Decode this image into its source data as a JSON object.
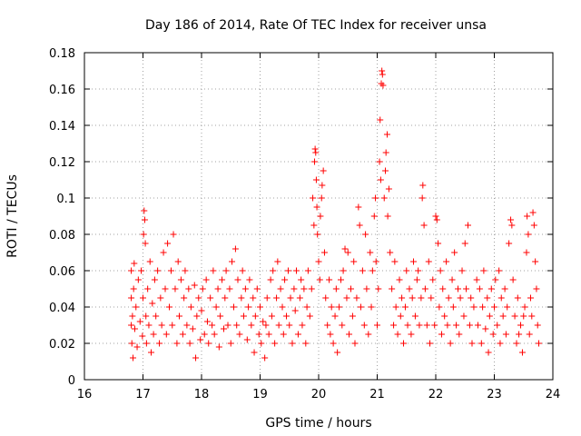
{
  "chart_data": {
    "type": "scatter",
    "title": "Day 186 of 2014, Rate Of TEC Index for receiver unsa",
    "xlabel": "GPS time / hours",
    "ylabel": "ROTI / TECUs",
    "xlim": [
      16,
      24
    ],
    "ylim": [
      0,
      0.18
    ],
    "xticks": [
      16,
      17,
      18,
      19,
      20,
      21,
      22,
      23,
      24
    ],
    "yticks": [
      0,
      0.02,
      0.04,
      0.06,
      0.08,
      0.1,
      0.12,
      0.14,
      0.16,
      0.18
    ],
    "xtick_labels": [
      "16",
      "17",
      "18",
      "19",
      "20",
      "21",
      "22",
      "23",
      "24"
    ],
    "ytick_labels": [
      "0",
      "0.02",
      "0.04",
      "0.06",
      "0.08",
      "0.1",
      "0.12",
      "0.14",
      "0.16",
      "0.18"
    ],
    "grid": true,
    "marker": "+",
    "color": "#ff0000",
    "series": [
      {
        "name": "ROTI",
        "points": [
          [
            16.8,
            0.03
          ],
          [
            16.8,
            0.045
          ],
          [
            16.8,
            0.06
          ],
          [
            16.81,
            0.02
          ],
          [
            16.82,
            0.035
          ],
          [
            16.83,
            0.012
          ],
          [
            16.84,
            0.05
          ],
          [
            16.85,
            0.064
          ],
          [
            16.86,
            0.028
          ],
          [
            16.88,
            0.04
          ],
          [
            16.9,
            0.018
          ],
          [
            16.92,
            0.055
          ],
          [
            16.95,
            0.032
          ],
          [
            16.97,
            0.06
          ],
          [
            16.99,
            0.024
          ],
          [
            17.0,
            0.045
          ],
          [
            17.01,
            0.08
          ],
          [
            17.02,
            0.093
          ],
          [
            17.03,
            0.088
          ],
          [
            17.04,
            0.075
          ],
          [
            17.05,
            0.035
          ],
          [
            17.06,
            0.02
          ],
          [
            17.08,
            0.05
          ],
          [
            17.1,
            0.03
          ],
          [
            17.12,
            0.065
          ],
          [
            17.14,
            0.015
          ],
          [
            17.16,
            0.042
          ],
          [
            17.18,
            0.025
          ],
          [
            17.2,
            0.055
          ],
          [
            17.22,
            0.035
          ],
          [
            17.25,
            0.06
          ],
          [
            17.28,
            0.02
          ],
          [
            17.3,
            0.045
          ],
          [
            17.32,
            0.03
          ],
          [
            17.35,
            0.07
          ],
          [
            17.38,
            0.05
          ],
          [
            17.4,
            0.025
          ],
          [
            17.42,
            0.075
          ],
          [
            17.45,
            0.04
          ],
          [
            17.48,
            0.06
          ],
          [
            17.5,
            0.03
          ],
          [
            17.52,
            0.08
          ],
          [
            17.55,
            0.05
          ],
          [
            17.58,
            0.02
          ],
          [
            17.6,
            0.065
          ],
          [
            17.62,
            0.035
          ],
          [
            17.65,
            0.055
          ],
          [
            17.68,
            0.025
          ],
          [
            17.7,
            0.045
          ],
          [
            17.72,
            0.06
          ],
          [
            17.75,
            0.03
          ],
          [
            17.78,
            0.05
          ],
          [
            17.8,
            0.02
          ],
          [
            17.82,
            0.04
          ],
          [
            17.85,
            0.028
          ],
          [
            17.88,
            0.052
          ],
          [
            17.9,
            0.012
          ],
          [
            17.92,
            0.035
          ],
          [
            17.95,
            0.045
          ],
          [
            17.98,
            0.022
          ],
          [
            18.0,
            0.038
          ],
          [
            18.02,
            0.05
          ],
          [
            18.05,
            0.025
          ],
          [
            18.08,
            0.055
          ],
          [
            18.1,
            0.032
          ],
          [
            18.12,
            0.02
          ],
          [
            18.15,
            0.045
          ],
          [
            18.18,
            0.03
          ],
          [
            18.2,
            0.06
          ],
          [
            18.22,
            0.025
          ],
          [
            18.25,
            0.04
          ],
          [
            18.28,
            0.05
          ],
          [
            18.3,
            0.018
          ],
          [
            18.32,
            0.035
          ],
          [
            18.35,
            0.055
          ],
          [
            18.38,
            0.028
          ],
          [
            18.4,
            0.045
          ],
          [
            18.42,
            0.06
          ],
          [
            18.45,
            0.03
          ],
          [
            18.48,
            0.05
          ],
          [
            18.5,
            0.02
          ],
          [
            18.52,
            0.065
          ],
          [
            18.55,
            0.04
          ],
          [
            18.58,
            0.072
          ],
          [
            18.6,
            0.03
          ],
          [
            18.62,
            0.055
          ],
          [
            18.65,
            0.025
          ],
          [
            18.68,
            0.045
          ],
          [
            18.7,
            0.06
          ],
          [
            18.72,
            0.035
          ],
          [
            18.75,
            0.05
          ],
          [
            18.78,
            0.022
          ],
          [
            18.8,
            0.04
          ],
          [
            18.82,
            0.055
          ],
          [
            18.85,
            0.03
          ],
          [
            18.88,
            0.045
          ],
          [
            18.9,
            0.015
          ],
          [
            18.92,
            0.035
          ],
          [
            18.95,
            0.05
          ],
          [
            18.98,
            0.025
          ],
          [
            19.0,
            0.04
          ],
          [
            19.02,
            0.02
          ],
          [
            19.05,
            0.032
          ],
          [
            19.08,
            0.012
          ],
          [
            19.1,
            0.03
          ],
          [
            19.12,
            0.045
          ],
          [
            19.15,
            0.025
          ],
          [
            19.18,
            0.055
          ],
          [
            19.2,
            0.035
          ],
          [
            19.22,
            0.06
          ],
          [
            19.25,
            0.02
          ],
          [
            19.28,
            0.045
          ],
          [
            19.3,
            0.065
          ],
          [
            19.32,
            0.03
          ],
          [
            19.35,
            0.05
          ],
          [
            19.38,
            0.04
          ],
          [
            19.4,
            0.025
          ],
          [
            19.42,
            0.055
          ],
          [
            19.45,
            0.035
          ],
          [
            19.48,
            0.06
          ],
          [
            19.5,
            0.03
          ],
          [
            19.52,
            0.045
          ],
          [
            19.55,
            0.02
          ],
          [
            19.58,
            0.05
          ],
          [
            19.6,
            0.038
          ],
          [
            19.62,
            0.06
          ],
          [
            19.65,
            0.025
          ],
          [
            19.68,
            0.045
          ],
          [
            19.7,
            0.055
          ],
          [
            19.72,
            0.03
          ],
          [
            19.75,
            0.05
          ],
          [
            19.78,
            0.02
          ],
          [
            19.8,
            0.04
          ],
          [
            19.82,
            0.06
          ],
          [
            19.85,
            0.035
          ],
          [
            19.88,
            0.05
          ],
          [
            19.9,
            0.1
          ],
          [
            19.92,
            0.085
          ],
          [
            19.93,
            0.12
          ],
          [
            19.94,
            0.127
          ],
          [
            19.95,
            0.125
          ],
          [
            19.96,
            0.11
          ],
          [
            19.97,
            0.095
          ],
          [
            19.98,
            0.08
          ],
          [
            20.0,
            0.065
          ],
          [
            20.02,
            0.055
          ],
          [
            20.03,
            0.09
          ],
          [
            20.05,
            0.1
          ],
          [
            20.06,
            0.107
          ],
          [
            20.08,
            0.115
          ],
          [
            20.1,
            0.07
          ],
          [
            20.12,
            0.045
          ],
          [
            20.15,
            0.03
          ],
          [
            20.18,
            0.055
          ],
          [
            20.2,
            0.025
          ],
          [
            20.22,
            0.04
          ],
          [
            20.25,
            0.02
          ],
          [
            20.28,
            0.035
          ],
          [
            20.3,
            0.05
          ],
          [
            20.32,
            0.015
          ],
          [
            20.35,
            0.04
          ],
          [
            20.38,
            0.055
          ],
          [
            20.4,
            0.03
          ],
          [
            20.42,
            0.06
          ],
          [
            20.45,
            0.072
          ],
          [
            20.48,
            0.045
          ],
          [
            20.5,
            0.07
          ],
          [
            20.52,
            0.025
          ],
          [
            20.55,
            0.05
          ],
          [
            20.58,
            0.035
          ],
          [
            20.6,
            0.065
          ],
          [
            20.62,
            0.02
          ],
          [
            20.65,
            0.045
          ],
          [
            20.68,
            0.095
          ],
          [
            20.7,
            0.085
          ],
          [
            20.72,
            0.04
          ],
          [
            20.75,
            0.06
          ],
          [
            20.78,
            0.03
          ],
          [
            20.8,
            0.08
          ],
          [
            20.82,
            0.05
          ],
          [
            20.85,
            0.025
          ],
          [
            20.88,
            0.07
          ],
          [
            20.9,
            0.04
          ],
          [
            20.92,
            0.06
          ],
          [
            20.95,
            0.09
          ],
          [
            20.97,
            0.1
          ],
          [
            20.98,
            0.065
          ],
          [
            21.0,
            0.03
          ],
          [
            21.02,
            0.05
          ],
          [
            21.04,
            0.12
          ],
          [
            21.05,
            0.143
          ],
          [
            21.06,
            0.11
          ],
          [
            21.07,
            0.163
          ],
          [
            21.08,
            0.17
          ],
          [
            21.09,
            0.168
          ],
          [
            21.1,
            0.162
          ],
          [
            21.12,
            0.1
          ],
          [
            21.14,
            0.115
          ],
          [
            21.15,
            0.125
          ],
          [
            21.17,
            0.135
          ],
          [
            21.18,
            0.09
          ],
          [
            21.2,
            0.105
          ],
          [
            21.22,
            0.07
          ],
          [
            21.25,
            0.05
          ],
          [
            21.28,
            0.03
          ],
          [
            21.3,
            0.065
          ],
          [
            21.32,
            0.04
          ],
          [
            21.35,
            0.025
          ],
          [
            21.38,
            0.055
          ],
          [
            21.4,
            0.035
          ],
          [
            21.42,
            0.045
          ],
          [
            21.45,
            0.02
          ],
          [
            21.48,
            0.04
          ],
          [
            21.5,
            0.06
          ],
          [
            21.52,
            0.03
          ],
          [
            21.55,
            0.05
          ],
          [
            21.58,
            0.025
          ],
          [
            21.6,
            0.045
          ],
          [
            21.62,
            0.065
          ],
          [
            21.65,
            0.035
          ],
          [
            21.68,
            0.055
          ],
          [
            21.7,
            0.06
          ],
          [
            21.72,
            0.03
          ],
          [
            21.75,
            0.045
          ],
          [
            21.77,
            0.1
          ],
          [
            21.78,
            0.107
          ],
          [
            21.8,
            0.085
          ],
          [
            21.82,
            0.05
          ],
          [
            21.85,
            0.03
          ],
          [
            21.88,
            0.065
          ],
          [
            21.9,
            0.02
          ],
          [
            21.92,
            0.045
          ],
          [
            21.95,
            0.055
          ],
          [
            21.98,
            0.03
          ],
          [
            22.0,
            0.09
          ],
          [
            22.02,
            0.088
          ],
          [
            22.04,
            0.075
          ],
          [
            22.06,
            0.04
          ],
          [
            22.08,
            0.06
          ],
          [
            22.1,
            0.025
          ],
          [
            22.12,
            0.05
          ],
          [
            22.15,
            0.035
          ],
          [
            22.18,
            0.065
          ],
          [
            22.2,
            0.03
          ],
          [
            22.22,
            0.045
          ],
          [
            22.25,
            0.02
          ],
          [
            22.28,
            0.055
          ],
          [
            22.3,
            0.04
          ],
          [
            22.32,
            0.07
          ],
          [
            22.35,
            0.03
          ],
          [
            22.38,
            0.05
          ],
          [
            22.4,
            0.025
          ],
          [
            22.42,
            0.045
          ],
          [
            22.45,
            0.06
          ],
          [
            22.48,
            0.035
          ],
          [
            22.5,
            0.075
          ],
          [
            22.52,
            0.05
          ],
          [
            22.55,
            0.085
          ],
          [
            22.58,
            0.03
          ],
          [
            22.6,
            0.045
          ],
          [
            22.62,
            0.02
          ],
          [
            22.65,
            0.04
          ],
          [
            22.7,
            0.055
          ],
          [
            22.72,
            0.03
          ],
          [
            22.75,
            0.05
          ],
          [
            22.78,
            0.02
          ],
          [
            22.8,
            0.04
          ],
          [
            22.82,
            0.06
          ],
          [
            22.85,
            0.028
          ],
          [
            22.88,
            0.045
          ],
          [
            22.9,
            0.015
          ],
          [
            22.92,
            0.035
          ],
          [
            22.95,
            0.05
          ],
          [
            22.98,
            0.025
          ],
          [
            23.0,
            0.04
          ],
          [
            23.02,
            0.055
          ],
          [
            23.05,
            0.03
          ],
          [
            23.08,
            0.06
          ],
          [
            23.1,
            0.02
          ],
          [
            23.12,
            0.045
          ],
          [
            23.15,
            0.035
          ],
          [
            23.18,
            0.05
          ],
          [
            23.2,
            0.025
          ],
          [
            23.22,
            0.04
          ],
          [
            23.25,
            0.075
          ],
          [
            23.28,
            0.088
          ],
          [
            23.3,
            0.085
          ],
          [
            23.32,
            0.055
          ],
          [
            23.35,
            0.035
          ],
          [
            23.38,
            0.02
          ],
          [
            23.4,
            0.045
          ],
          [
            23.42,
            0.025
          ],
          [
            23.45,
            0.03
          ],
          [
            23.48,
            0.015
          ],
          [
            23.5,
            0.035
          ],
          [
            23.52,
            0.04
          ],
          [
            23.55,
            0.07
          ],
          [
            23.56,
            0.09
          ],
          [
            23.58,
            0.08
          ],
          [
            23.6,
            0.025
          ],
          [
            23.62,
            0.045
          ],
          [
            23.64,
            0.035
          ],
          [
            23.66,
            0.092
          ],
          [
            23.68,
            0.085
          ],
          [
            23.7,
            0.065
          ],
          [
            23.72,
            0.05
          ],
          [
            23.74,
            0.03
          ],
          [
            23.76,
            0.02
          ]
        ]
      }
    ]
  }
}
